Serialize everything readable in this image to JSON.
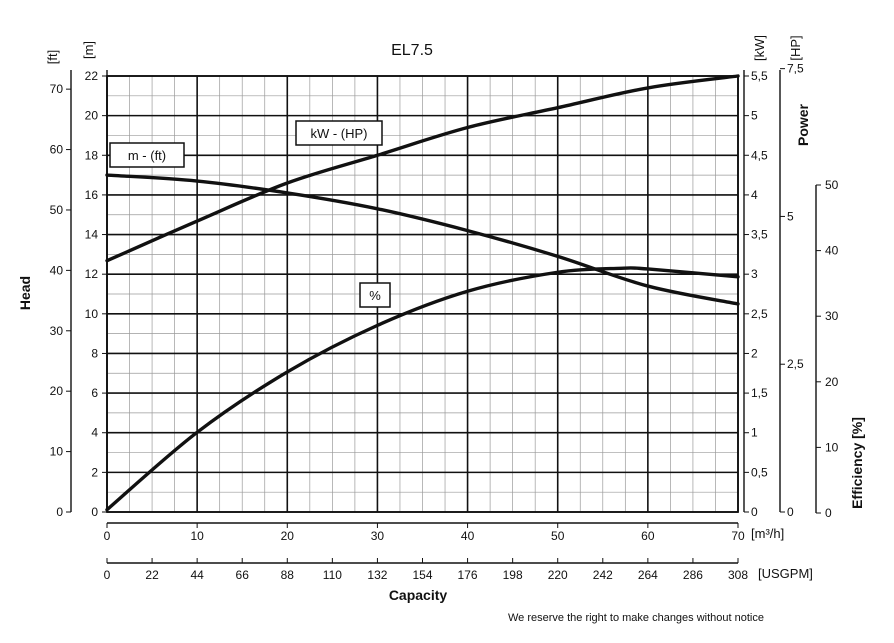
{
  "chart_data": {
    "type": "line",
    "title": "EL7.5",
    "note": "We reserve the right to make changes without notice",
    "x_axis": {
      "label": "Capacity",
      "primary": {
        "unit": "[m³/h]",
        "range": [
          0,
          70
        ],
        "ticks": [
          "0",
          "10",
          "20",
          "30",
          "40",
          "50",
          "60",
          "70"
        ]
      },
      "secondary": {
        "unit": "[USGPM]",
        "ticks": [
          "0",
          "22",
          "44",
          "66",
          "88",
          "110",
          "132",
          "154",
          "176",
          "198",
          "220",
          "242",
          "264",
          "286",
          "308"
        ]
      },
      "grid_minor_step": 2.5
    },
    "left_axis": {
      "label": "Head",
      "primary": {
        "unit": "[m]",
        "range": [
          0,
          22
        ],
        "ticks": [
          "0",
          "2",
          "4",
          "6",
          "8",
          "10",
          "12",
          "14",
          "16",
          "18",
          "20",
          "22"
        ]
      },
      "secondary": {
        "unit": "[ft]",
        "ticks": [
          "0",
          "10",
          "20",
          "30",
          "40",
          "50",
          "60",
          "70"
        ]
      },
      "grid_minor_step": 1
    },
    "power_axis": {
      "label": "Power",
      "primary": {
        "unit": "[kW]",
        "range": [
          0,
          5.5
        ],
        "ticks": [
          "0",
          "0,5",
          "1",
          "1,5",
          "2",
          "2,5",
          "3",
          "3,5",
          "4",
          "4,5",
          "5",
          "5,5"
        ]
      },
      "secondary": {
        "unit": "[HP]",
        "ticks": [
          "0",
          "2,5",
          "5",
          "7,5"
        ]
      }
    },
    "efficiency_axis": {
      "label": "Efficiency [%]",
      "range": [
        0,
        50
      ],
      "ticks": [
        "0",
        "10",
        "20",
        "30",
        "40",
        "50"
      ]
    },
    "grid": true,
    "series": [
      {
        "name": "m - (ft)",
        "axis": "head_m",
        "x": [
          0,
          10,
          20,
          30,
          40,
          50,
          60,
          70
        ],
        "y": [
          17.0,
          16.7,
          16.1,
          15.3,
          14.2,
          12.9,
          11.4,
          10.5
        ]
      },
      {
        "name": "kW - (HP)",
        "axis": "power_kw",
        "x": [
          0,
          10,
          20,
          30,
          40,
          50,
          60,
          70
        ],
        "y": [
          3.17,
          3.67,
          4.15,
          4.5,
          4.85,
          5.1,
          5.35,
          5.5
        ]
      },
      {
        "name": "%",
        "axis": "efficiency_pct",
        "x": [
          0,
          10,
          20,
          30,
          40,
          50,
          57,
          60,
          70
        ],
        "y": [
          0.5,
          12.3,
          21.5,
          28.6,
          33.8,
          36.7,
          37.3,
          37.2,
          36.0
        ]
      }
    ]
  }
}
